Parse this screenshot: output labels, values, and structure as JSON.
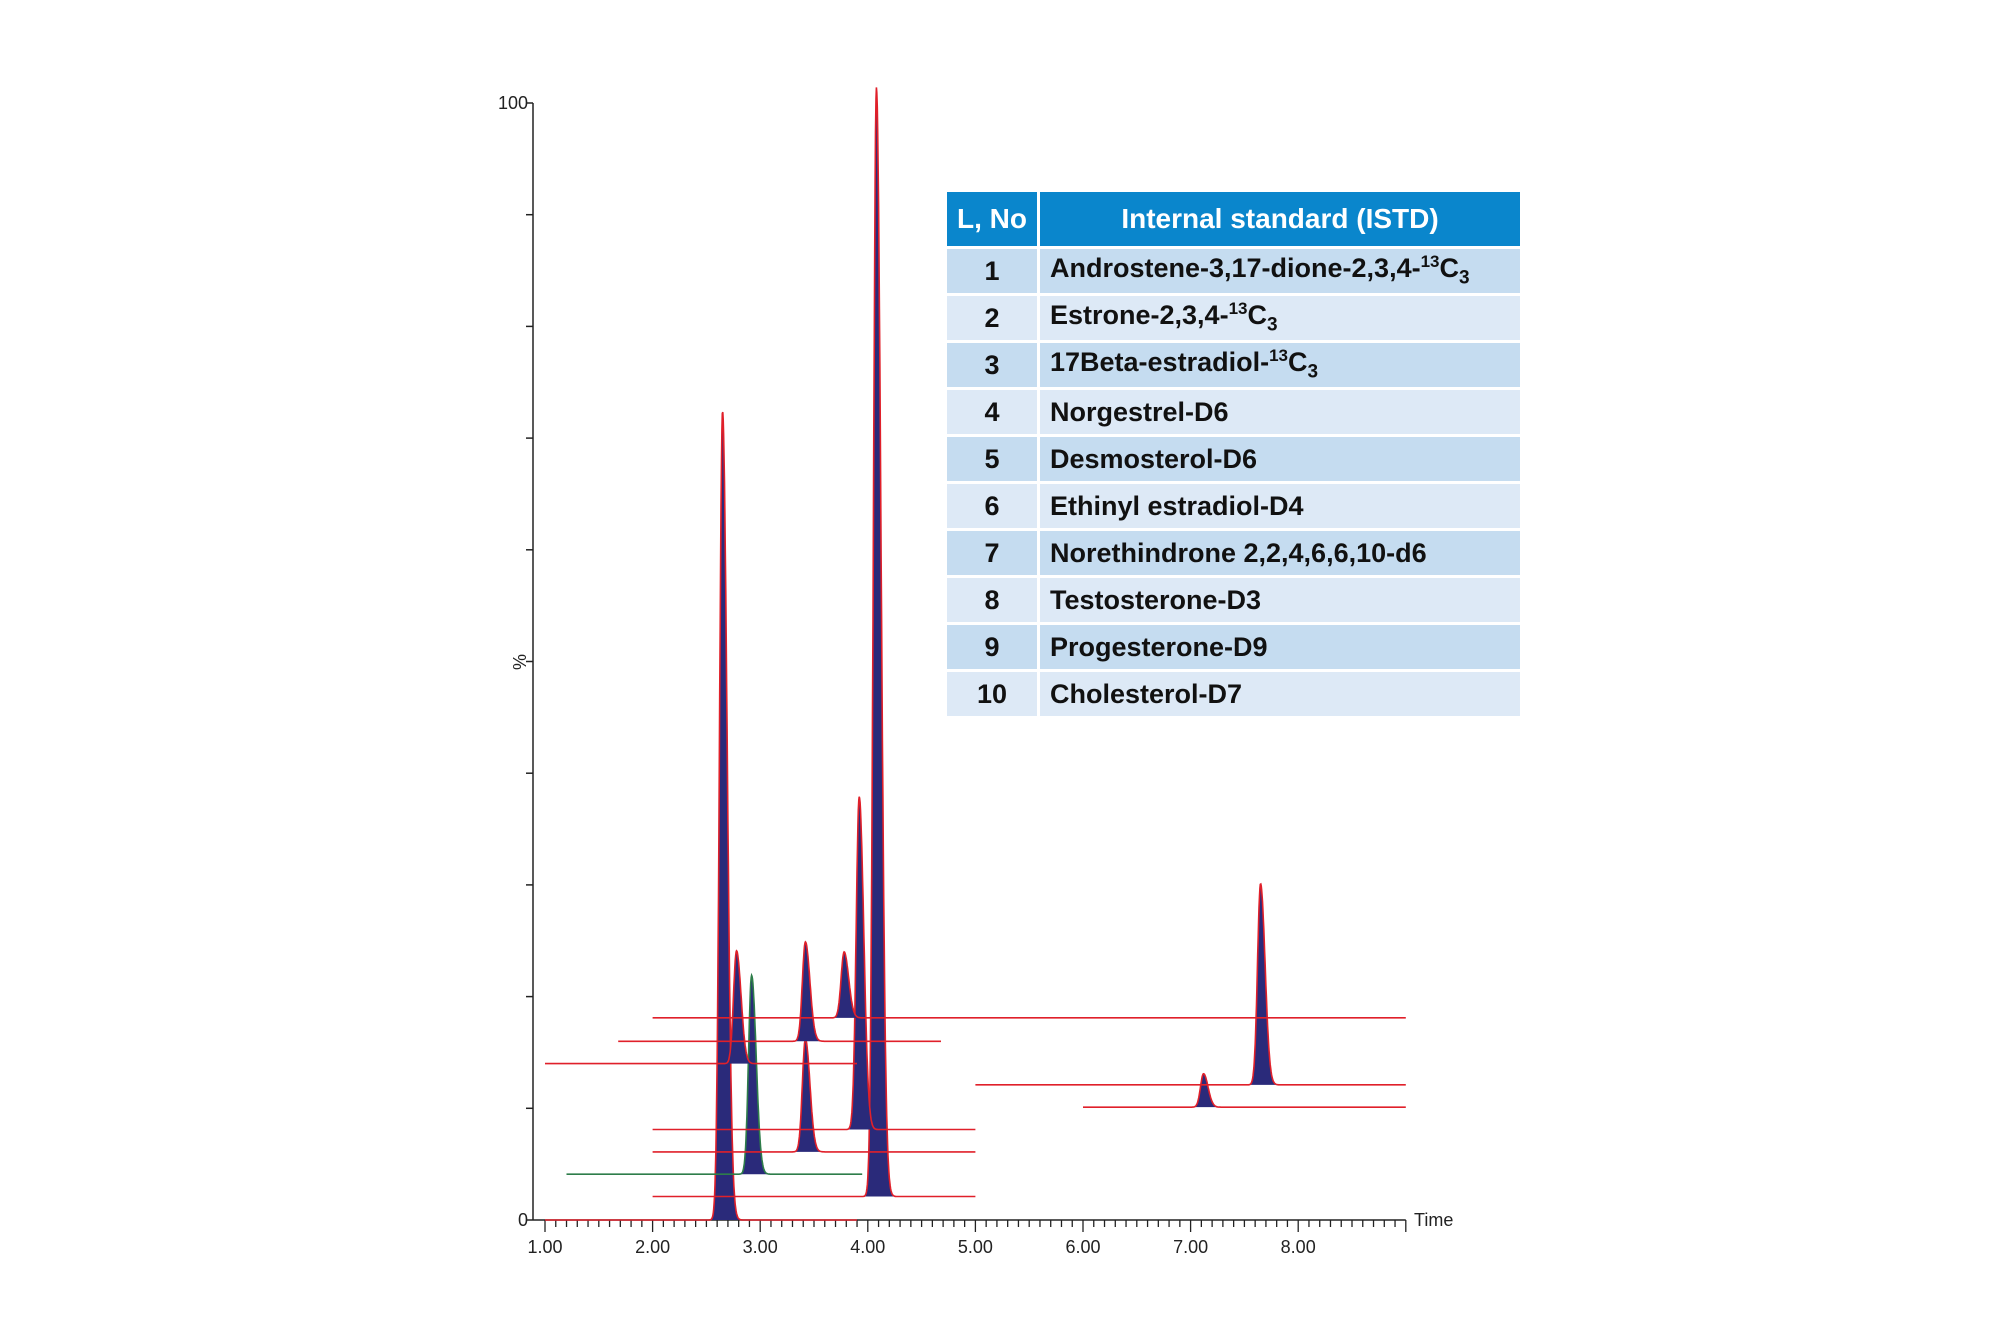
{
  "chart_data": {
    "type": "line",
    "xlabel": "Time",
    "ylabel": "%",
    "xlim": [
      1.0,
      9.0
    ],
    "ylim": [
      0,
      100
    ],
    "x_ticks": [
      "1.00",
      "2.00",
      "3.00",
      "4.00",
      "5.00",
      "6.00",
      "7.00",
      "8.00"
    ],
    "y_tick_labels": [
      "0",
      "100"
    ],
    "colors": {
      "trace": "#e0202a",
      "trace_alt": "#2e7d4a",
      "peak_fill": "#2a2a7a"
    },
    "traces": [
      {
        "offset": 0.0,
        "x": [
          1.0,
          3.9
        ],
        "color": "#e0202a",
        "peaks": [
          {
            "rt": 2.65,
            "height": 72.4
          }
        ]
      },
      {
        "offset": 2.1,
        "x": [
          2.0,
          5.0
        ],
        "color": "#e0202a",
        "peaks": [
          {
            "rt": 4.08,
            "height": 99.3
          }
        ]
      },
      {
        "offset": 4.1,
        "x": [
          1.2,
          3.95
        ],
        "color": "#2e7d4a",
        "peaks": [
          {
            "rt": 2.92,
            "height": 17.8
          }
        ]
      },
      {
        "offset": 6.1,
        "x": [
          2.0,
          5.0
        ],
        "color": "#e0202a",
        "peaks": [
          {
            "rt": 3.42,
            "height": 10.1
          }
        ]
      },
      {
        "offset": 8.1,
        "x": [
          2.0,
          5.0
        ],
        "color": "#e0202a",
        "peaks": [
          {
            "rt": 3.92,
            "height": 29.8
          }
        ]
      },
      {
        "offset": 10.1,
        "x": [
          6.0,
          9.0
        ],
        "color": "#e0202a",
        "peaks": [
          {
            "rt": 7.12,
            "height": 3.0
          }
        ]
      },
      {
        "offset": 12.1,
        "x": [
          5.0,
          9.0
        ],
        "color": "#e0202a",
        "peaks": [
          {
            "rt": 7.65,
            "height": 18.0
          }
        ]
      },
      {
        "offset": 14.0,
        "x": [
          1.0,
          3.9
        ],
        "color": "#e0202a",
        "peaks": [
          {
            "rt": 2.78,
            "height": 10.1
          }
        ]
      },
      {
        "offset": 16.0,
        "x": [
          1.68,
          4.68
        ],
        "color": "#e0202a",
        "peaks": [
          {
            "rt": 3.42,
            "height": 8.9
          }
        ]
      },
      {
        "offset": 18.1,
        "x": [
          2.0,
          9.0
        ],
        "color": "#e0202a",
        "peaks": [
          {
            "rt": 3.78,
            "height": 5.9
          }
        ]
      }
    ]
  },
  "table": {
    "header": {
      "col1": "L, No",
      "col2": "Internal standard (ISTD)"
    },
    "rows": [
      {
        "no": "1",
        "name": "Androstene-3,17-dione-2,3,4-",
        "sup": "13",
        "tail": "C",
        "sub": "3"
      },
      {
        "no": "2",
        "name": "Estrone-2,3,4-",
        "sup": "13",
        "tail": "C",
        "sub": "3"
      },
      {
        "no": "3",
        "name": "17Beta-estradiol-",
        "sup": "13",
        "tail": "C",
        "sub": "3"
      },
      {
        "no": "4",
        "name": "Norgestrel-D6"
      },
      {
        "no": "5",
        "name": "Desmosterol-D6"
      },
      {
        "no": "6",
        "name": "Ethinyl estradiol-D4"
      },
      {
        "no": "7",
        "name": "Norethindrone 2,2,4,6,6,10-d6"
      },
      {
        "no": "8",
        "name": "Testosterone-D3"
      },
      {
        "no": "9",
        "name": "Progesterone-D9"
      },
      {
        "no": "10",
        "name": "Cholesterol-D7"
      }
    ]
  }
}
